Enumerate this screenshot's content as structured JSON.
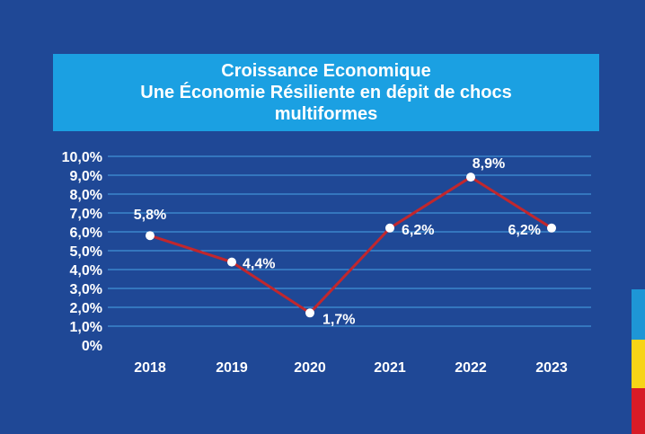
{
  "title": {
    "line1": "Croissance Economique",
    "line2": "Une Économie Résiliente en dépit de chocs",
    "line3": "multiformes"
  },
  "colors": {
    "background": "#1f4896",
    "banner": "#1ba0e2",
    "line": "#c1272d",
    "gridline": "#4aa3e6",
    "text": "#ffffff",
    "flag_blue": "#1e96d6",
    "flag_yellow": "#f7d417",
    "flag_red": "#d71b27"
  },
  "chart_data": {
    "type": "line",
    "title": "Croissance Economique — Une Économie Résiliente en dépit de chocs multiformes",
    "categories": [
      "2018",
      "2019",
      "2020",
      "2021",
      "2022",
      "2023"
    ],
    "series": [
      {
        "values": [
          5.8,
          4.4,
          1.7,
          6.2,
          8.9,
          6.2
        ],
        "labels": [
          "5,8%",
          "4,4%",
          "1,7%",
          "6,2%",
          "8,9%",
          "6,2%"
        ]
      }
    ],
    "ylim": [
      0,
      10
    ],
    "y_ticks": [
      "0%",
      "1,0%",
      "2,0%",
      "3,0%",
      "4,0%",
      "5,0%",
      "6,0%",
      "7,0%",
      "8,0%",
      "9,0%",
      "10,0%"
    ],
    "xlabel": "",
    "ylabel": "",
    "grid": true,
    "legend": "none"
  }
}
